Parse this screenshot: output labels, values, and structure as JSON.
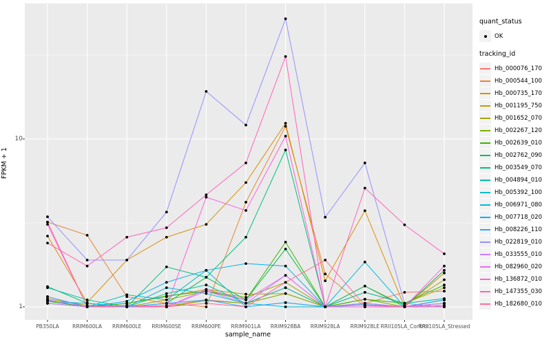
{
  "figure": {
    "background": "#ffffff",
    "panel_background": "#ebebeb",
    "grid_color": "#ffffff",
    "point_color": "#000000",
    "axis_text_color": "#4d4d4d"
  },
  "y_axis": {
    "title": "FPKM + 1",
    "scale": "log10",
    "ticks": [
      "10",
      "1"
    ]
  },
  "x_axis": {
    "title": "sample_name"
  },
  "legend": {
    "quant_status": {
      "title": "quant_status",
      "items": [
        {
          "label": "OK"
        }
      ]
    },
    "tracking_id": {
      "title": "tracking_id",
      "items": [
        {
          "label": "Hb_000076_170",
          "color": "#F8766D"
        },
        {
          "label": "Hb_000544_100",
          "color": "#EA8331"
        },
        {
          "label": "Hb_000735_170",
          "color": "#D89000"
        },
        {
          "label": "Hb_001195_750",
          "color": "#C09B00"
        },
        {
          "label": "Hb_001652_070",
          "color": "#A3A500"
        },
        {
          "label": "Hb_002267_120",
          "color": "#7CAE00"
        },
        {
          "label": "Hb_002639_010",
          "color": "#39B600"
        },
        {
          "label": "Hb_002762_090",
          "color": "#00BB4E"
        },
        {
          "label": "Hb_003549_070",
          "color": "#00BF7D"
        },
        {
          "label": "Hb_004894_010",
          "color": "#00C1A3"
        },
        {
          "label": "Hb_005392_100",
          "color": "#00BFC4"
        },
        {
          "label": "Hb_006971_080",
          "color": "#00BAE0"
        },
        {
          "label": "Hb_007718_020",
          "color": "#00B0F6"
        },
        {
          "label": "Hb_008226_110",
          "color": "#35A2FF"
        },
        {
          "label": "Hb_022819_010",
          "color": "#9590FF"
        },
        {
          "label": "Hb_033555_010",
          "color": "#C77CFF"
        },
        {
          "label": "Hb_082960_020",
          "color": "#E76BF3"
        },
        {
          "label": "Hb_136872_010",
          "color": "#FA62DB"
        },
        {
          "label": "Hb_147355_030",
          "color": "#FF62BC"
        },
        {
          "label": "Hb_182680_010",
          "color": "#FF6A98"
        }
      ]
    }
  },
  "chart_data": {
    "type": "line",
    "title": "",
    "xlabel": "sample_name",
    "ylabel": "FPKM + 1",
    "y_scale": "log10",
    "ylim": [
      0.95,
      63
    ],
    "grid": true,
    "legend_position": "right",
    "point_marker": "black dot on every data point (quant_status = OK)",
    "categories": [
      "PB350LA",
      "RRIM600LA",
      "RRIM600LE",
      "RRIM600SE",
      "RRIM600PE",
      "RRIM901LA",
      "RRIM928BA",
      "RRIM928LA",
      "RRIM928LE",
      "RRII105LA_Control",
      "RRII105LA_Stressed"
    ],
    "series": [
      {
        "name": "Hb_000076_170",
        "color": "#F8766D",
        "values": [
          1.15,
          1.0,
          1.0,
          1.02,
          1.1,
          1.05,
          1.3,
          1.0,
          1.05,
          1.22,
          1.24
        ]
      },
      {
        "name": "Hb_000544_100",
        "color": "#EA8331",
        "values": [
          3.2,
          2.67,
          1.15,
          1.05,
          1.0,
          4.2,
          11.9,
          1.57,
          1.0,
          1.0,
          1.05
        ]
      },
      {
        "name": "Hb_000735_170",
        "color": "#D89000",
        "values": [
          2.64,
          1.06,
          1.9,
          2.6,
          3.1,
          5.5,
          12.4,
          1.43,
          3.74,
          1.0,
          1.59
        ]
      },
      {
        "name": "Hb_001195_750",
        "color": "#C09B00",
        "values": [
          1.1,
          1.0,
          1.05,
          1.15,
          1.27,
          1.19,
          1.2,
          1.0,
          1.22,
          1.05,
          1.3
        ]
      },
      {
        "name": "Hb_001652_070",
        "color": "#A3A500",
        "values": [
          1.12,
          1.02,
          1.0,
          1.1,
          1.24,
          1.14,
          1.4,
          1.0,
          1.33,
          1.02,
          1.45
        ]
      },
      {
        "name": "Hb_002267_120",
        "color": "#7CAE00",
        "values": [
          1.05,
          1.0,
          1.02,
          1.0,
          1.09,
          1.05,
          1.2,
          1.0,
          1.11,
          1.0,
          1.1
        ]
      },
      {
        "name": "Hb_002639_010",
        "color": "#39B600",
        "values": [
          1.08,
          1.0,
          1.05,
          1.16,
          1.24,
          1.1,
          2.43,
          1.0,
          1.11,
          1.05,
          1.35
        ]
      },
      {
        "name": "Hb_002762_090",
        "color": "#00BB4E",
        "values": [
          1.1,
          1.0,
          1.0,
          1.05,
          1.5,
          1.1,
          2.21,
          1.0,
          1.05,
          1.0,
          1.65
        ]
      },
      {
        "name": "Hb_003549_070",
        "color": "#00BF7D",
        "values": [
          1.32,
          1.05,
          1.0,
          1.73,
          1.5,
          2.6,
          8.6,
          1.0,
          1.33,
          1.0,
          1.1
        ]
      },
      {
        "name": "Hb_004894_010",
        "color": "#00C1A3",
        "values": [
          1.3,
          1.1,
          1.0,
          1.2,
          1.35,
          1.05,
          1.3,
          1.0,
          1.22,
          1.05,
          1.12
        ]
      },
      {
        "name": "Hb_005392_100",
        "color": "#00BFC4",
        "values": [
          1.05,
          1.0,
          1.18,
          1.1,
          1.65,
          1.0,
          1.06,
          1.0,
          1.03,
          1.0,
          1.05
        ]
      },
      {
        "name": "Hb_006971_080",
        "color": "#00BAE0",
        "values": [
          1.08,
          1.05,
          1.0,
          1.3,
          1.2,
          1.05,
          1.0,
          1.0,
          1.85,
          1.0,
          1.1
        ]
      },
      {
        "name": "Hb_007718_020",
        "color": "#00B0F6",
        "values": [
          1.1,
          1.0,
          1.08,
          1.4,
          1.65,
          1.81,
          1.75,
          1.0,
          1.0,
          1.0,
          1.02
        ]
      },
      {
        "name": "Hb_008226_110",
        "color": "#35A2FF",
        "values": [
          1.15,
          1.0,
          1.0,
          1.05,
          1.1,
          1.0,
          1.06,
          1.0,
          1.03,
          1.0,
          1.1
        ]
      },
      {
        "name": "Hb_022819_010",
        "color": "#9590FF",
        "values": [
          3.44,
          1.9,
          1.9,
          3.67,
          19.2,
          12.1,
          52.0,
          3.42,
          7.2,
          1.05,
          1.0
        ]
      },
      {
        "name": "Hb_033555_010",
        "color": "#C77CFF",
        "values": [
          1.05,
          1.0,
          1.0,
          1.0,
          1.24,
          1.05,
          1.54,
          1.0,
          1.05,
          1.0,
          1.02
        ]
      },
      {
        "name": "Hb_082960_020",
        "color": "#E76BF3",
        "values": [
          1.1,
          1.0,
          1.02,
          1.0,
          1.27,
          1.1,
          1.54,
          1.0,
          1.0,
          1.0,
          1.05
        ]
      },
      {
        "name": "Hb_136872_010",
        "color": "#FA62DB",
        "values": [
          3.1,
          1.0,
          1.0,
          1.0,
          4.5,
          3.75,
          10.4,
          1.0,
          1.0,
          1.0,
          1.75
        ]
      },
      {
        "name": "Hb_147355_030",
        "color": "#FF62BC",
        "values": [
          2.4,
          1.75,
          2.6,
          2.96,
          4.65,
          7.2,
          31.0,
          1.0,
          5.1,
          3.08,
          2.07
        ]
      },
      {
        "name": "Hb_182680_010",
        "color": "#FF6A98",
        "values": [
          3.2,
          1.0,
          1.02,
          1.0,
          1.05,
          1.0,
          1.4,
          1.9,
          1.02,
          1.0,
          1.0
        ]
      }
    ]
  }
}
